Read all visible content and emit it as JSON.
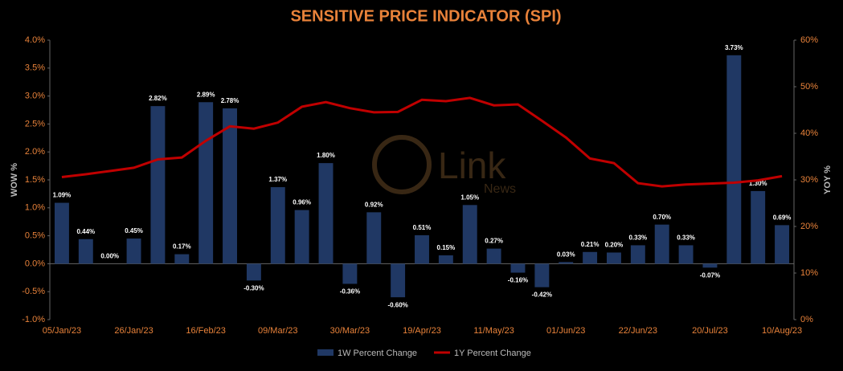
{
  "chart_data": {
    "type": "bar_line",
    "title": "SENSITIVE PRICE INDICATOR (SPI)",
    "watermark": [
      "Link",
      "News"
    ],
    "y_label": "WOW %",
    "y2_label": "YOY %",
    "categories": [
      "05/Jan/23",
      null,
      null,
      "26/Jan/23",
      null,
      null,
      "16/Feb/23",
      null,
      null,
      "09/Mar/23",
      null,
      null,
      "30/Mar/23",
      null,
      null,
      "19/Apr/23",
      null,
      null,
      "11/May/23",
      null,
      null,
      "01/Jun/23",
      null,
      null,
      "22/Jun/23",
      null,
      null,
      "20/Jul/23",
      null,
      null,
      "10/Aug/23"
    ],
    "series": [
      {
        "name": "1W Percent Change",
        "color": "#203864",
        "type": "bar",
        "values": [
          1.09,
          0.44,
          0.0,
          0.45,
          2.82,
          0.17,
          2.89,
          2.78,
          -0.3,
          1.37,
          0.96,
          1.8,
          -0.36,
          0.92,
          -0.6,
          0.51,
          0.15,
          1.05,
          0.27,
          -0.16,
          -0.42,
          0.03,
          0.21,
          0.2,
          0.33,
          0.7,
          0.33,
          -0.07,
          3.73,
          1.3,
          0.69
        ],
        "value_labels": [
          "1.09%",
          "0.44%",
          "0.00%",
          "0.45%",
          "2.82%",
          "0.17%",
          "2.89%",
          "2.78%",
          "-0.30%",
          "1.37%",
          "0.96%",
          "1.80%",
          "-0.36%",
          "0.92%",
          "-0.60%",
          "0.51%",
          "0.15%",
          "1.05%",
          "0.27%",
          "-0.16%",
          "-0.42%",
          "0.03%",
          "0.21%",
          "0.20%",
          "0.33%",
          "0.70%",
          "0.33%",
          "-0.07%",
          "3.73%",
          "1.30%",
          "0.69%"
        ]
      },
      {
        "name": "1Y Percent Change",
        "color": "#c00000",
        "type": "line",
        "axis": "y2",
        "values": [
          30.6,
          31.2,
          31.9,
          32.6,
          34.4,
          34.8,
          38.4,
          41.5,
          41.0,
          42.3,
          45.7,
          46.7,
          45.4,
          44.5,
          44.6,
          47.2,
          46.9,
          47.6,
          46.0,
          46.2,
          42.7,
          39.1,
          34.6,
          33.6,
          29.3,
          28.6,
          29.0,
          29.2,
          29.4,
          29.9,
          30.8
        ]
      }
    ],
    "ylim": [
      -1.0,
      4.0
    ],
    "yticks": [
      {
        "value": -1.0,
        "label": "-1.0%"
      },
      {
        "value": -0.5,
        "label": "-0.5%"
      },
      {
        "value": 0,
        "label": "0.0%"
      },
      {
        "value": 0.5,
        "label": "0.5%"
      },
      {
        "value": 1.0,
        "label": "1.0%"
      },
      {
        "value": 1.5,
        "label": "1.5%"
      },
      {
        "value": 2.0,
        "label": "2.0%"
      },
      {
        "value": 2.5,
        "label": "2.5%"
      },
      {
        "value": 3.0,
        "label": "3.0%"
      },
      {
        "value": 3.5,
        "label": "3.5%"
      },
      {
        "value": 4.0,
        "label": "4.0%"
      }
    ],
    "y2lim": [
      0,
      60
    ],
    "y2ticks": [
      {
        "value": 0,
        "label": "0%"
      },
      {
        "value": 10,
        "label": "10%"
      },
      {
        "value": 20,
        "label": "20%"
      },
      {
        "value": 30,
        "label": "30%"
      },
      {
        "value": 40,
        "label": "40%"
      },
      {
        "value": 50,
        "label": "50%"
      },
      {
        "value": 60,
        "label": "60%"
      }
    ],
    "legend": "bottom"
  }
}
